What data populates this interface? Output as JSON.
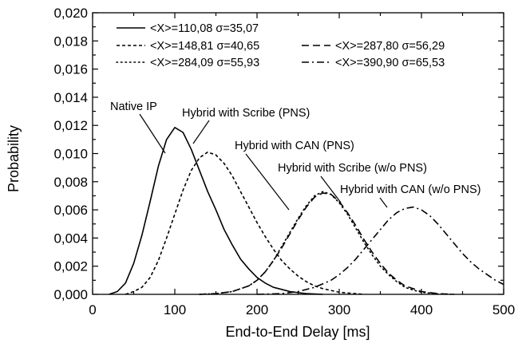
{
  "chart_data": {
    "type": "line",
    "xlabel": "End-to-End Delay [ms]",
    "ylabel": "Probability",
    "xlim": [
      0,
      500
    ],
    "ylim": [
      0,
      0.02
    ],
    "x_ticks": [
      0,
      100,
      200,
      300,
      400,
      500
    ],
    "x_tick_labels": [
      "0",
      "100",
      "200",
      "300",
      "400",
      "500"
    ],
    "y_ticks": [
      0.0,
      0.002,
      0.004,
      0.006,
      0.008,
      0.01,
      0.012,
      0.014,
      0.016,
      0.018,
      0.02
    ],
    "y_tick_labels": [
      "0,000",
      "0,002",
      "0,004",
      "0,006",
      "0,008",
      "0,010",
      "0,012",
      "0,014",
      "0,016",
      "0,018",
      "0,020"
    ],
    "grid": false,
    "legend_position": "top-left",
    "series": [
      {
        "legend": "<X>=110,08 σ=35,07",
        "annotation": "Native IP",
        "style": "solid",
        "points": [
          [
            20,
            0
          ],
          [
            30,
            0.0002
          ],
          [
            40,
            0.0008
          ],
          [
            50,
            0.0022
          ],
          [
            60,
            0.0042
          ],
          [
            70,
            0.0066
          ],
          [
            80,
            0.0091
          ],
          [
            90,
            0.011
          ],
          [
            100,
            0.01185
          ],
          [
            110,
            0.0115
          ],
          [
            120,
            0.0103
          ],
          [
            130,
            0.0088
          ],
          [
            140,
            0.0073
          ],
          [
            150,
            0.006
          ],
          [
            160,
            0.0046
          ],
          [
            170,
            0.0035
          ],
          [
            180,
            0.0025
          ],
          [
            190,
            0.0018
          ],
          [
            200,
            0.0012
          ],
          [
            210,
            0.0008
          ],
          [
            220,
            0.0005
          ],
          [
            230,
            0.00035
          ],
          [
            240,
            0.0002
          ],
          [
            260,
            5e-05
          ],
          [
            280,
            0
          ]
        ]
      },
      {
        "legend": "<X>=148,81 σ=40,65",
        "annotation": "Hybrid with Scribe (PNS)",
        "style": "dash-short",
        "points": [
          [
            40,
            0
          ],
          [
            50,
            0.0002
          ],
          [
            60,
            0.0005
          ],
          [
            70,
            0.0012
          ],
          [
            80,
            0.0024
          ],
          [
            90,
            0.004
          ],
          [
            100,
            0.0057
          ],
          [
            110,
            0.0074
          ],
          [
            120,
            0.0088
          ],
          [
            130,
            0.0097
          ],
          [
            140,
            0.0101
          ],
          [
            150,
            0.0099
          ],
          [
            160,
            0.0093
          ],
          [
            170,
            0.0084
          ],
          [
            180,
            0.0073
          ],
          [
            190,
            0.0062
          ],
          [
            200,
            0.0051
          ],
          [
            210,
            0.0041
          ],
          [
            220,
            0.0032
          ],
          [
            230,
            0.0024
          ],
          [
            240,
            0.0018
          ],
          [
            250,
            0.0013
          ],
          [
            260,
            0.0009
          ],
          [
            270,
            0.0006
          ],
          [
            280,
            0.0004
          ],
          [
            300,
            0.00015
          ],
          [
            330,
            0
          ]
        ]
      },
      {
        "legend": "<X>=287,80 σ=56,29",
        "annotation": "Hybrid with CAN (PNS)",
        "style": "dash-long",
        "points": [
          [
            130,
            0
          ],
          [
            150,
            5e-05
          ],
          [
            170,
            0.0002
          ],
          [
            190,
            0.0006
          ],
          [
            200,
            0.001
          ],
          [
            210,
            0.0016
          ],
          [
            220,
            0.0024
          ],
          [
            230,
            0.0033
          ],
          [
            240,
            0.0043
          ],
          [
            250,
            0.0053
          ],
          [
            260,
            0.0062
          ],
          [
            270,
            0.0069
          ],
          [
            280,
            0.0072
          ],
          [
            290,
            0.0071
          ],
          [
            300,
            0.0066
          ],
          [
            310,
            0.0058
          ],
          [
            320,
            0.0049
          ],
          [
            330,
            0.0039
          ],
          [
            340,
            0.003
          ],
          [
            350,
            0.0022
          ],
          [
            360,
            0.0015
          ],
          [
            370,
            0.001
          ],
          [
            380,
            0.0006
          ],
          [
            390,
            0.0004
          ],
          [
            400,
            0.0002
          ],
          [
            420,
            5e-05
          ],
          [
            440,
            0
          ]
        ]
      },
      {
        "legend": "<X>=284,09 σ=55,93",
        "annotation": "Hybrid with Scribe (w/o PNS)",
        "style": "dotted",
        "points": [
          [
            130,
            0
          ],
          [
            150,
            5e-05
          ],
          [
            170,
            0.0002
          ],
          [
            190,
            0.0006
          ],
          [
            200,
            0.001
          ],
          [
            210,
            0.0016
          ],
          [
            220,
            0.0024
          ],
          [
            230,
            0.0034
          ],
          [
            240,
            0.0044
          ],
          [
            250,
            0.0054
          ],
          [
            260,
            0.0063
          ],
          [
            270,
            0.007
          ],
          [
            280,
            0.0073
          ],
          [
            290,
            0.0071
          ],
          [
            300,
            0.0065
          ],
          [
            310,
            0.0057
          ],
          [
            320,
            0.0047
          ],
          [
            330,
            0.0037
          ],
          [
            340,
            0.0028
          ],
          [
            350,
            0.002
          ],
          [
            360,
            0.0014
          ],
          [
            370,
            0.0009
          ],
          [
            380,
            0.0005
          ],
          [
            390,
            0.0003
          ],
          [
            400,
            0.00015
          ],
          [
            420,
            3e-05
          ],
          [
            440,
            0
          ]
        ]
      },
      {
        "legend": "<X>=390,90 σ=65,53",
        "annotation": "Hybrid with CAN (w/o PNS)",
        "style": "dash-dot",
        "points": [
          [
            200,
            0
          ],
          [
            230,
            5e-05
          ],
          [
            250,
            0.0002
          ],
          [
            270,
            0.0005
          ],
          [
            290,
            0.001
          ],
          [
            300,
            0.0014
          ],
          [
            310,
            0.0019
          ],
          [
            320,
            0.0025
          ],
          [
            330,
            0.0032
          ],
          [
            340,
            0.0039
          ],
          [
            350,
            0.0046
          ],
          [
            360,
            0.0053
          ],
          [
            370,
            0.0058
          ],
          [
            380,
            0.0061
          ],
          [
            390,
            0.0062
          ],
          [
            400,
            0.006
          ],
          [
            410,
            0.0056
          ],
          [
            420,
            0.005
          ],
          [
            430,
            0.0043
          ],
          [
            440,
            0.0036
          ],
          [
            450,
            0.0029
          ],
          [
            460,
            0.0023
          ],
          [
            470,
            0.0018
          ],
          [
            480,
            0.0014
          ],
          [
            490,
            0.001
          ],
          [
            500,
            0.0007
          ]
        ]
      }
    ]
  }
}
